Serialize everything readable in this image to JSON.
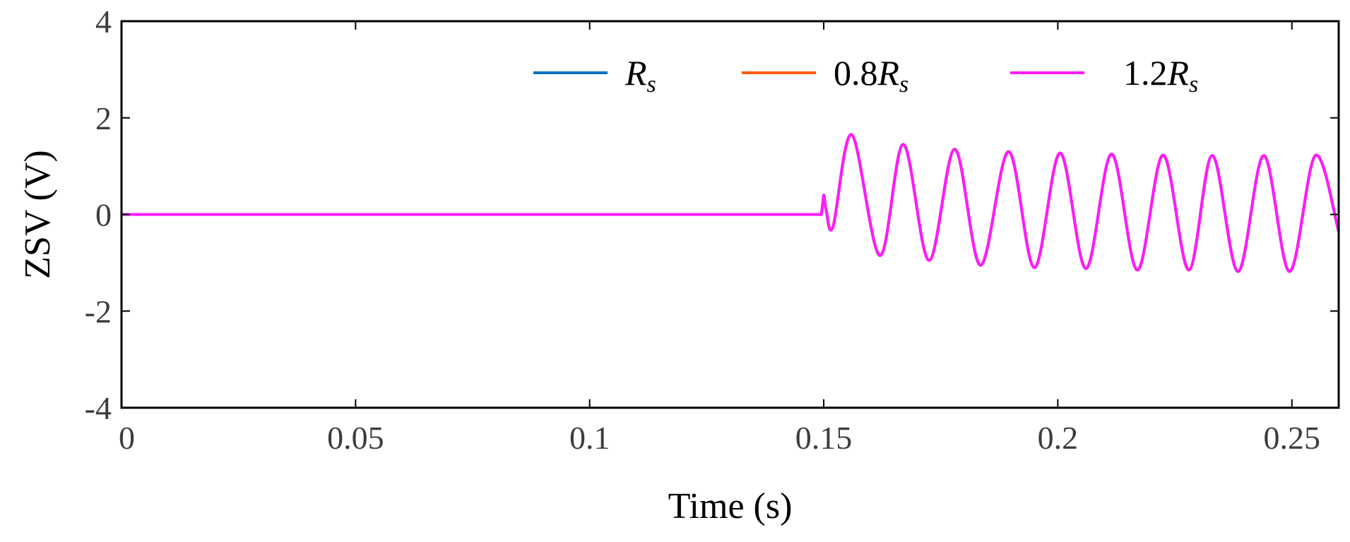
{
  "chart_data": {
    "type": "line",
    "xlabel": "Time (s)",
    "ylabel": "ZSV (V)",
    "xlim": [
      0,
      0.26
    ],
    "ylim": [
      -4,
      4
    ],
    "xticks": [
      0,
      0.05,
      0.1,
      0.15,
      0.2,
      0.25
    ],
    "xtick_labels": [
      "0",
      "0.05",
      "0.1",
      "0.15",
      "0.2",
      "0.25"
    ],
    "yticks": [
      -4,
      -2,
      0,
      2,
      4
    ],
    "ytick_labels": [
      "-4",
      "-2",
      "0",
      "2",
      "4"
    ],
    "grid": false,
    "legend_position": "top",
    "series": [
      {
        "name": "R_s",
        "legend": {
          "prefix": "",
          "main": "R",
          "sub": "s"
        },
        "color": "#0072bd",
        "x": [
          0,
          0.1495,
          0.15,
          0.1505,
          0.152,
          0.156,
          0.162,
          0.167,
          0.1725,
          0.178,
          0.1835,
          0.1895,
          0.195,
          0.2005,
          0.206,
          0.2115,
          0.217,
          0.2225,
          0.228,
          0.233,
          0.2385,
          0.244,
          0.2495,
          0.255,
          0.26
        ],
        "y": [
          0,
          0,
          0.4,
          0.1,
          -0.25,
          1.65,
          -0.85,
          1.45,
          -0.95,
          1.35,
          -1.05,
          1.3,
          -1.1,
          1.27,
          -1.12,
          1.25,
          -1.15,
          1.23,
          -1.15,
          1.22,
          -1.18,
          1.22,
          -1.18,
          1.22,
          -0.35
        ]
      },
      {
        "name": "0.8R_s",
        "legend": {
          "prefix": "0.8",
          "main": "R",
          "sub": "s"
        },
        "color": "#ff5a0a",
        "x": [
          0,
          0.1495,
          0.15,
          0.1505,
          0.152,
          0.156,
          0.162,
          0.167,
          0.1725,
          0.178,
          0.1835,
          0.1895,
          0.195,
          0.2005,
          0.206,
          0.2115,
          0.217,
          0.2225,
          0.228,
          0.233,
          0.2385,
          0.244,
          0.2495,
          0.255,
          0.26
        ],
        "y": [
          0,
          0,
          0.4,
          0.1,
          -0.25,
          1.65,
          -0.85,
          1.45,
          -0.95,
          1.35,
          -1.05,
          1.3,
          -1.1,
          1.27,
          -1.12,
          1.25,
          -1.15,
          1.23,
          -1.15,
          1.22,
          -1.18,
          1.22,
          -1.18,
          1.22,
          -0.35
        ]
      },
      {
        "name": "1.2R_s",
        "legend": {
          "prefix": "1.2",
          "main": "R",
          "sub": "s"
        },
        "color": "#ff1aff",
        "x": [
          0,
          0.1495,
          0.15,
          0.1505,
          0.152,
          0.156,
          0.162,
          0.167,
          0.1725,
          0.178,
          0.1835,
          0.1895,
          0.195,
          0.2005,
          0.206,
          0.2115,
          0.217,
          0.2225,
          0.228,
          0.233,
          0.2385,
          0.244,
          0.2495,
          0.255,
          0.26
        ],
        "y": [
          0,
          0,
          0.4,
          0.1,
          -0.25,
          1.65,
          -0.85,
          1.45,
          -0.95,
          1.35,
          -1.05,
          1.3,
          -1.1,
          1.27,
          -1.12,
          1.25,
          -1.15,
          1.23,
          -1.15,
          1.22,
          -1.18,
          1.22,
          -1.18,
          1.22,
          -0.35
        ]
      }
    ]
  }
}
